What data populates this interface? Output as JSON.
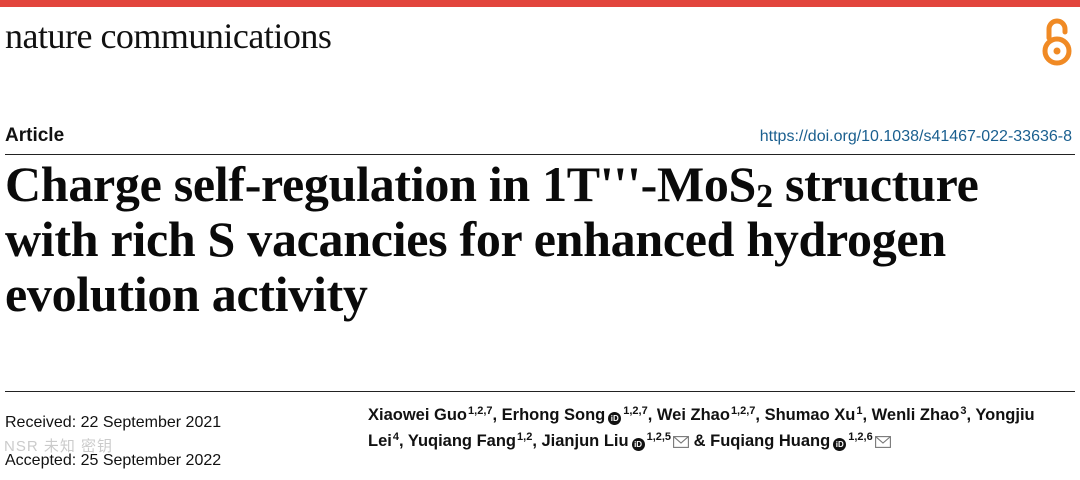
{
  "journal": {
    "name": "nature communications"
  },
  "article": {
    "type": "Article",
    "doi": "https://doi.org/10.1038/s41467-022-33636-8",
    "title": {
      "line1_pre": "Charge self-regulation in 1T'''-MoS",
      "line1_sub": "2",
      "line1_post": " structure",
      "line2": "with rich S vacancies for enhanced hydrogen",
      "line3": "evolution activity"
    },
    "received": "Received: 22 September 2021",
    "accepted": "Accepted: 25 September 2022"
  },
  "authors": [
    {
      "name": "Xiaowei Guo",
      "aff": "1,2,7",
      "orcid": false,
      "mail": false
    },
    {
      "name": "Erhong Song",
      "aff": "1,2,7",
      "orcid": true,
      "mail": false
    },
    {
      "name": "Wei Zhao",
      "aff": "1,2,7",
      "orcid": false,
      "mail": false
    },
    {
      "name": "Shumao Xu",
      "aff": "1",
      "orcid": false,
      "mail": false
    },
    {
      "name": "Wenli Zhao",
      "aff": "3",
      "orcid": false,
      "mail": false
    },
    {
      "name": "Yongjiu Lei",
      "aff": "4",
      "orcid": false,
      "mail": false
    },
    {
      "name": "Yuqiang Fang",
      "aff": "1,2",
      "orcid": false,
      "mail": false
    },
    {
      "name": "Jianjun Liu",
      "aff": "1,2,5",
      "orcid": true,
      "mail": true
    },
    {
      "name": "Fuqiang Huang",
      "aff": "1,2,6",
      "orcid": true,
      "mail": true,
      "prefix": "& "
    }
  ],
  "icons": {
    "open_access": "open-access-icon",
    "orcid": "orcid-icon",
    "mail": "mail-icon"
  },
  "colors": {
    "top_bar": "#e2453c",
    "open_access": "#f08a24",
    "doi_link": "#1a5f8f"
  },
  "watermark": "NSR 未知 密钥"
}
